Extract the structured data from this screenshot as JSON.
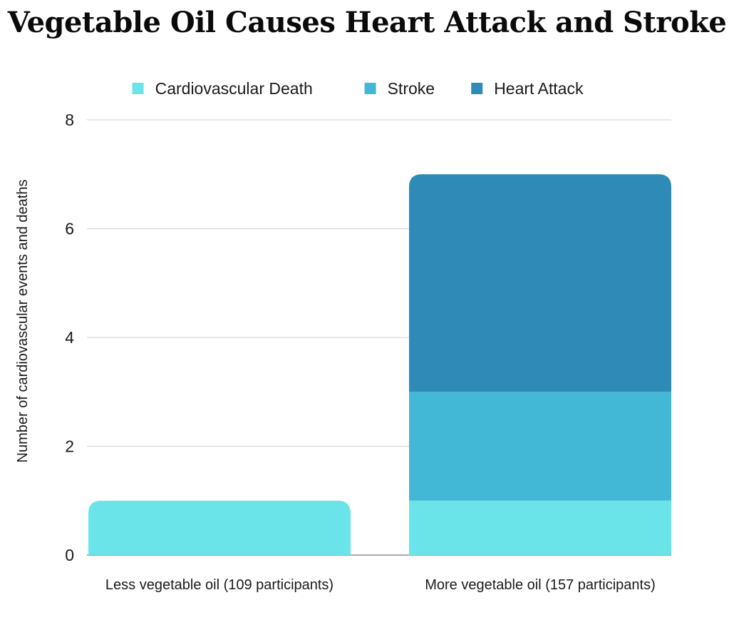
{
  "chart_data": {
    "type": "bar",
    "stacked": true,
    "title": "Vegetable Oil Causes Heart Attack and Stroke",
    "xlabel": "",
    "ylabel": "Number of cardiovascular events and deaths",
    "ylim": [
      0,
      8
    ],
    "yticks": [
      "0",
      "2",
      "4",
      "6",
      "8"
    ],
    "grid": true,
    "legend_position": "top",
    "categories": [
      "Less vegetable oil (109 participants)",
      "More vegetable oil (157 participants)"
    ],
    "series": [
      {
        "name": "Cardiovascular Death",
        "color": "#6ae4e8",
        "values": [
          1,
          1
        ]
      },
      {
        "name": "Stroke",
        "color": "#43b8d6",
        "values": [
          0,
          2
        ]
      },
      {
        "name": "Heart Attack",
        "color": "#2e8bb8",
        "values": [
          0,
          4
        ]
      }
    ]
  }
}
